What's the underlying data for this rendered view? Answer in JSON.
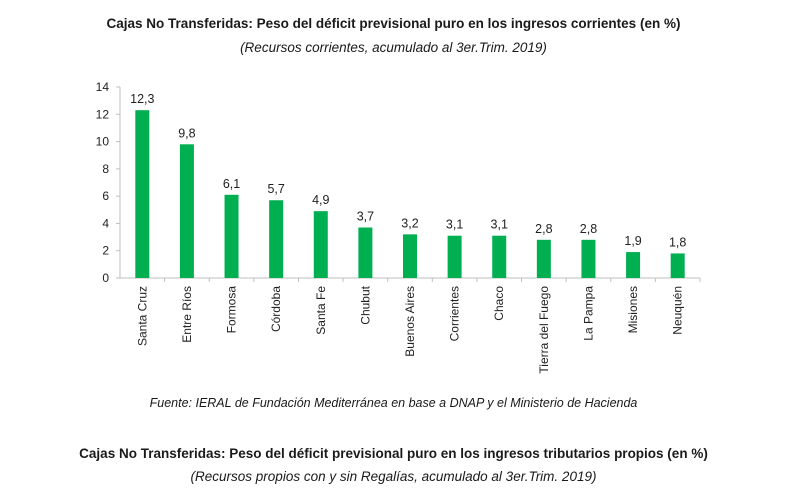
{
  "chart1": {
    "title": "Cajas No Transferidas: Peso del déficit previsional puro en los ingresos corrientes (en %)",
    "subtitle": "(Recursos corrientes, acumulado al 3er.Trim. 2019)",
    "source": "Fuente: IERAL de Fundación Mediterránea en base a DNAP y el Ministerio de Hacienda"
  },
  "chart2": {
    "title": "Cajas No Transferidas: Peso del déficit previsional puro en los ingresos tributarios propios (en %)",
    "subtitle": "(Recursos propios con y sin Regalías, acumulado al 3er.Trim. 2019)"
  },
  "chart_data": {
    "type": "bar",
    "categories": [
      "Santa Cruz",
      "Entre Ríos",
      "Formosa",
      "Córdoba",
      "Santa Fe",
      "Chubut",
      "Buenos Aires",
      "Corrientes",
      "Chaco",
      "Tierra del Fuego",
      "La Pampa",
      "Misiones",
      "Neuquén"
    ],
    "values": [
      12.3,
      9.8,
      6.1,
      5.7,
      4.9,
      3.7,
      3.2,
      3.1,
      3.1,
      2.8,
      2.8,
      1.9,
      1.8
    ],
    "value_labels": [
      "12,3",
      "9,8",
      "6,1",
      "5,7",
      "4,9",
      "3,7",
      "3,2",
      "3,1",
      "3,1",
      "2,8",
      "2,8",
      "1,9",
      "1,8"
    ],
    "yticks": [
      0,
      2,
      4,
      6,
      8,
      10,
      12,
      14
    ],
    "ylim": [
      0,
      14
    ],
    "xlabel": "",
    "ylabel": "",
    "grid": false,
    "legend": "none",
    "bar_color": "#00b050"
  }
}
